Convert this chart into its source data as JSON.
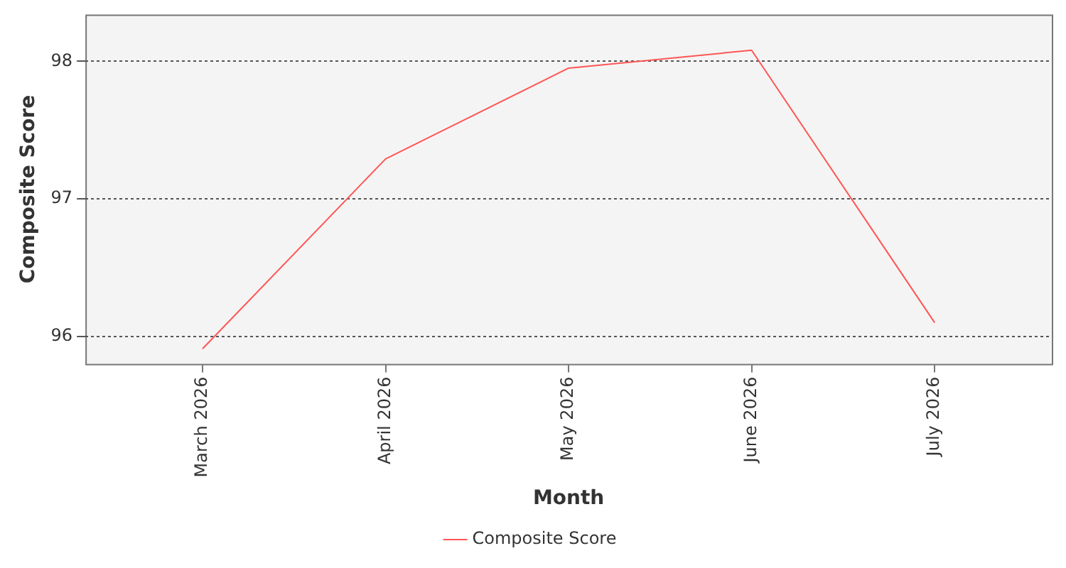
{
  "chart_data": {
    "type": "line",
    "xlabel": "Month",
    "ylabel": "Composite Score",
    "categories": [
      "March 2026",
      "April 2026",
      "May 2026",
      "June 2026",
      "July 2026"
    ],
    "series": [
      {
        "name": "Composite Score",
        "color": "#ff5555",
        "values": [
          95.91,
          97.29,
          97.95,
          98.08,
          96.1
        ]
      }
    ],
    "ylim": [
      95.8,
      98.34
    ],
    "yticks": [
      96,
      97,
      98
    ],
    "grid": "y",
    "legend": "bottom",
    "marker": "none",
    "line_style": "solid"
  }
}
